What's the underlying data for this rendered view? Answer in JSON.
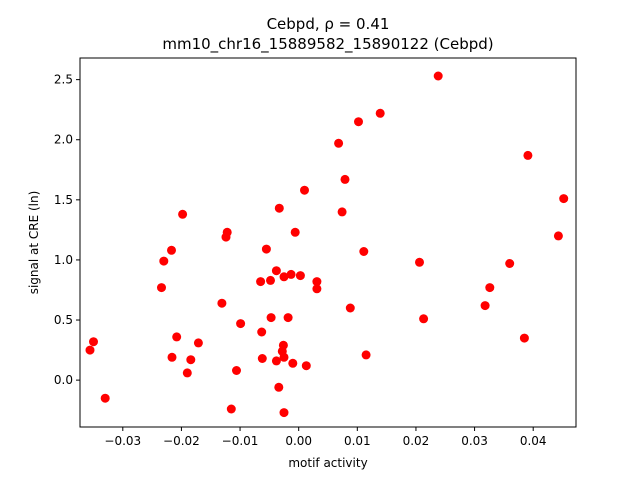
{
  "chart_data": {
    "type": "scatter",
    "title_line1": "Cebpd, ρ = 0.41",
    "title_line2": "mm10_chr16_15889582_15890122 (Cebpd)",
    "xlabel": "motif activity",
    "ylabel": "signal at CRE (ln)",
    "xlim": [
      -0.0373,
      0.0473
    ],
    "ylim": [
      -0.39,
      2.68
    ],
    "xticks": [
      {
        "value": -0.03,
        "label": "−0.03"
      },
      {
        "value": -0.02,
        "label": "−0.02"
      },
      {
        "value": -0.01,
        "label": "−0.01"
      },
      {
        "value": 0.0,
        "label": "0.00"
      },
      {
        "value": 0.01,
        "label": "0.01"
      },
      {
        "value": 0.02,
        "label": "0.02"
      },
      {
        "value": 0.03,
        "label": "0.03"
      },
      {
        "value": 0.04,
        "label": "0.04"
      }
    ],
    "yticks": [
      {
        "value": 0.0,
        "label": "0.0"
      },
      {
        "value": 0.5,
        "label": "0.5"
      },
      {
        "value": 1.0,
        "label": "1.0"
      },
      {
        "value": 1.5,
        "label": "1.5"
      },
      {
        "value": 2.0,
        "label": "2.0"
      },
      {
        "value": 2.5,
        "label": "2.5"
      }
    ],
    "marker_color": "#ff0000",
    "grid": false,
    "points": [
      {
        "x": -0.0356,
        "y": 0.25
      },
      {
        "x": -0.035,
        "y": 0.32
      },
      {
        "x": -0.033,
        "y": -0.15
      },
      {
        "x": -0.0234,
        "y": 0.77
      },
      {
        "x": -0.023,
        "y": 0.99
      },
      {
        "x": -0.0217,
        "y": 1.08
      },
      {
        "x": -0.0216,
        "y": 0.19
      },
      {
        "x": -0.0208,
        "y": 0.36
      },
      {
        "x": -0.0198,
        "y": 1.38
      },
      {
        "x": -0.019,
        "y": 0.06
      },
      {
        "x": -0.0184,
        "y": 0.17
      },
      {
        "x": -0.0171,
        "y": 0.31
      },
      {
        "x": -0.0131,
        "y": 0.64
      },
      {
        "x": -0.0124,
        "y": 1.19
      },
      {
        "x": -0.0122,
        "y": 1.23
      },
      {
        "x": -0.0115,
        "y": -0.24
      },
      {
        "x": -0.0106,
        "y": 0.08
      },
      {
        "x": -0.0099,
        "y": 0.47
      },
      {
        "x": -0.0065,
        "y": 0.82
      },
      {
        "x": -0.0063,
        "y": 0.4
      },
      {
        "x": -0.0062,
        "y": 0.18
      },
      {
        "x": -0.0055,
        "y": 1.09
      },
      {
        "x": -0.0048,
        "y": 0.83
      },
      {
        "x": -0.0047,
        "y": 0.52
      },
      {
        "x": -0.0038,
        "y": 0.91
      },
      {
        "x": -0.0038,
        "y": 0.16
      },
      {
        "x": -0.0033,
        "y": 1.43
      },
      {
        "x": -0.0034,
        "y": -0.06
      },
      {
        "x": -0.0028,
        "y": 0.24
      },
      {
        "x": -0.0026,
        "y": 0.29
      },
      {
        "x": -0.0025,
        "y": 0.86
      },
      {
        "x": -0.0025,
        "y": 0.19
      },
      {
        "x": -0.0025,
        "y": -0.27
      },
      {
        "x": -0.0018,
        "y": 0.52
      },
      {
        "x": -0.0013,
        "y": 0.88
      },
      {
        "x": -0.001,
        "y": 0.14
      },
      {
        "x": -0.0006,
        "y": 1.23
      },
      {
        "x": 0.0003,
        "y": 0.87
      },
      {
        "x": 0.001,
        "y": 1.58
      },
      {
        "x": 0.0013,
        "y": 0.12
      },
      {
        "x": 0.0031,
        "y": 0.82
      },
      {
        "x": 0.0031,
        "y": 0.76
      },
      {
        "x": 0.0068,
        "y": 1.97
      },
      {
        "x": 0.0074,
        "y": 1.4
      },
      {
        "x": 0.0079,
        "y": 1.67
      },
      {
        "x": 0.0088,
        "y": 0.6
      },
      {
        "x": 0.0102,
        "y": 2.15
      },
      {
        "x": 0.0111,
        "y": 1.07
      },
      {
        "x": 0.0115,
        "y": 0.21
      },
      {
        "x": 0.0139,
        "y": 2.22
      },
      {
        "x": 0.0206,
        "y": 0.98
      },
      {
        "x": 0.0213,
        "y": 0.51
      },
      {
        "x": 0.0238,
        "y": 2.53
      },
      {
        "x": 0.0318,
        "y": 0.62
      },
      {
        "x": 0.0326,
        "y": 0.77
      },
      {
        "x": 0.036,
        "y": 0.97
      },
      {
        "x": 0.0385,
        "y": 0.35
      },
      {
        "x": 0.0391,
        "y": 1.87
      },
      {
        "x": 0.0443,
        "y": 1.2
      },
      {
        "x": 0.0452,
        "y": 1.51
      }
    ]
  }
}
